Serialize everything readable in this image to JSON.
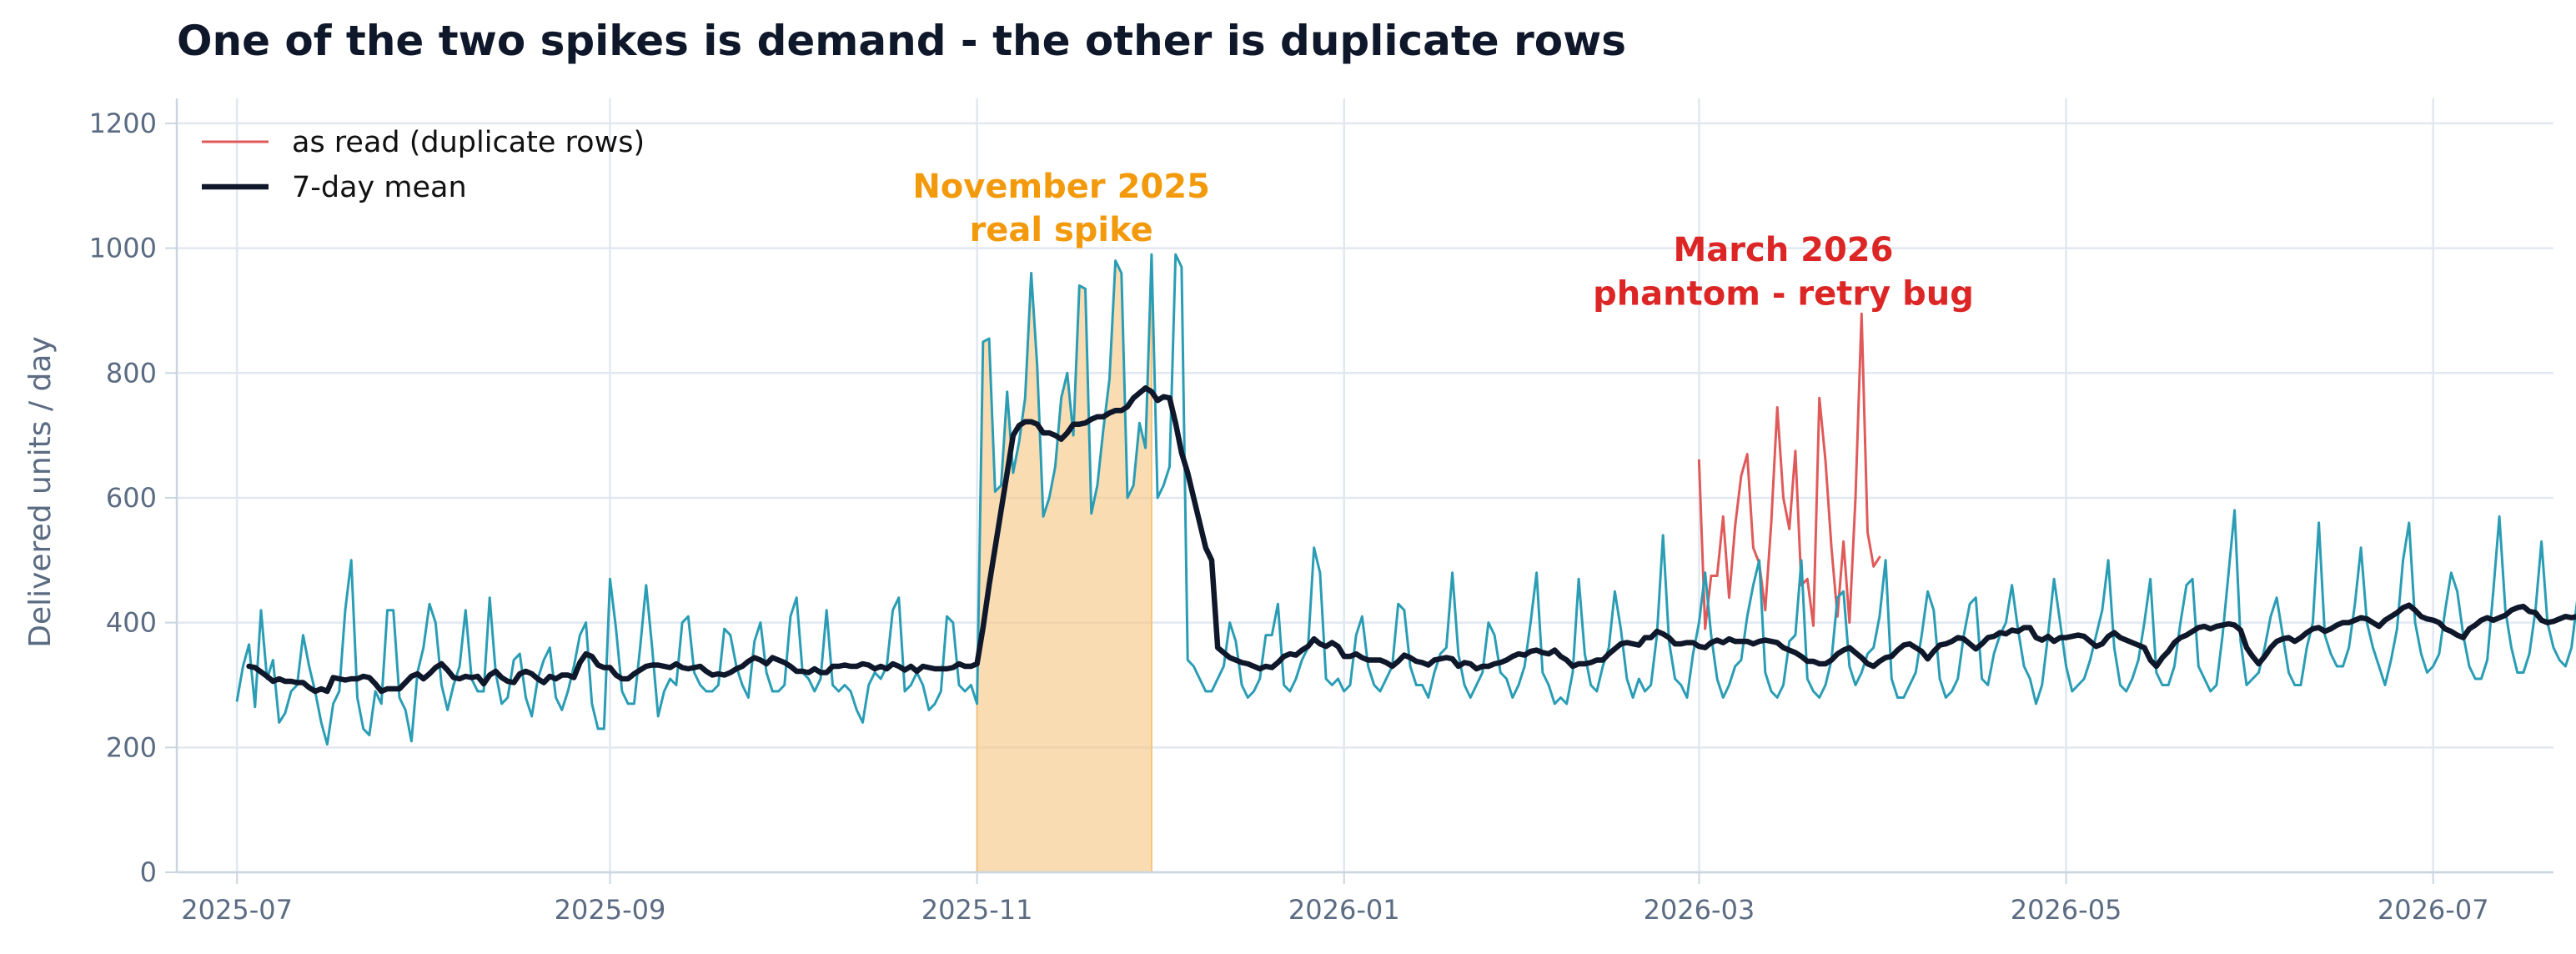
{
  "chart_data": {
    "type": "line",
    "title": "One of the two spikes is demand - the other is duplicate rows",
    "xlabel": "",
    "ylabel": "Delivered units / day",
    "xlim": [
      "2025-06-21",
      "2026-07-21"
    ],
    "ylim": [
      0,
      1240
    ],
    "grid": true,
    "legend_position": "top-left",
    "x_ticks": [
      "2025-07",
      "2025-09",
      "2025-11",
      "2026-01",
      "2026-03",
      "2026-05",
      "2026-07"
    ],
    "y_ticks": [
      0,
      200,
      400,
      600,
      800,
      1000,
      1200
    ],
    "colors": {
      "daily": "#2a9db5",
      "duplicate": "#e05a5a",
      "mean": "#0f172a",
      "real_spike_fill": "#f6c47e",
      "real_spike_text": "#f29a0c",
      "phantom_text": "#dc2626",
      "grid": "#e2e8f0",
      "axis": "#cbd5e1"
    },
    "highlight_band": {
      "x": [
        "2025-11-01",
        "2025-11-30"
      ],
      "label": "real spike"
    },
    "annotations": [
      {
        "lines": [
          "November 2025",
          "real spike"
        ],
        "x": "2025-11-15",
        "y": [
          1100,
          1030
        ],
        "color": "#f29a0c"
      },
      {
        "lines": [
          "March 2026",
          "phantom - retry bug"
        ],
        "x": "2026-03-15",
        "y": [
          998,
          928
        ],
        "color": "#dc2626"
      }
    ],
    "series": [
      {
        "name": "as read (duplicate rows)",
        "color": "#e05a5a",
        "start": "2026-03-01",
        "values": [
          660,
          390,
          475,
          475,
          570,
          440,
          555,
          635,
          670,
          520,
          495,
          420,
          560,
          745,
          600,
          550,
          675,
          460,
          470,
          395,
          760,
          660,
          520,
          410,
          530,
          400,
          600,
          895,
          545,
          490,
          505
        ]
      },
      {
        "name": "7-day mean",
        "color": "#0f172a",
        "start": "2025-07-03",
        "values": [
          330,
          328,
          321,
          314,
          306,
          310,
          306,
          306,
          304,
          304,
          296,
          290,
          294,
          290,
          312,
          310,
          308,
          310,
          310,
          314,
          312,
          302,
          290,
          294,
          294,
          294,
          304,
          314,
          318,
          310,
          318,
          328,
          334,
          324,
          312,
          310,
          314,
          312,
          314,
          302,
          316,
          322,
          312,
          306,
          304,
          318,
          322,
          318,
          310,
          304,
          314,
          310,
          316,
          316,
          312,
          336,
          350,
          346,
          332,
          328,
          328,
          316,
          310,
          310,
          318,
          324,
          330,
          332,
          332,
          330,
          328,
          334,
          328,
          326,
          328,
          330,
          322,
          316,
          318,
          316,
          320,
          326,
          330,
          338,
          344,
          340,
          334,
          344,
          340,
          336,
          330,
          322,
          322,
          320,
          326,
          320,
          320,
          330,
          330,
          332,
          330,
          330,
          334,
          332,
          326,
          330,
          326,
          334,
          330,
          324,
          330,
          322,
          330,
          328,
          326,
          326,
          326,
          328,
          334,
          330,
          330,
          334,
          392,
          460,
          520,
          580,
          640,
          700,
          716,
          722,
          722,
          718,
          704,
          704,
          700,
          694,
          704,
          718,
          718,
          720,
          726,
          730,
          730,
          736,
          740,
          740,
          746,
          760,
          768,
          776,
          770,
          756,
          762,
          760,
          720,
          672,
          640,
          600,
          560,
          520,
          500,
          360,
          352,
          344,
          340,
          336,
          334,
          330,
          326,
          330,
          328,
          336,
          346,
          350,
          348,
          356,
          362,
          374,
          366,
          362,
          368,
          362,
          346,
          346,
          350,
          344,
          340,
          340,
          340,
          336,
          330,
          338,
          348,
          344,
          338,
          336,
          332,
          340,
          342,
          344,
          342,
          330,
          336,
          334,
          326,
          330,
          330,
          334,
          336,
          340,
          346,
          350,
          348,
          354,
          356,
          352,
          350,
          356,
          346,
          340,
          330,
          334,
          334,
          336,
          340,
          340,
          350,
          358,
          366,
          368,
          366,
          364,
          376,
          376,
          386,
          382,
          376,
          366,
          366,
          368,
          368,
          362,
          360,
          368,
          372,
          368,
          374,
          370,
          370,
          370,
          366,
          370,
          372,
          370,
          368,
          360,
          356,
          352,
          346,
          338,
          338,
          334,
          334,
          340,
          350,
          356,
          360,
          352,
          344,
          334,
          330,
          338,
          344,
          346,
          356,
          364,
          366,
          360,
          354,
          342,
          354,
          364,
          366,
          370,
          376,
          374,
          366,
          358,
          366,
          376,
          378,
          384,
          382,
          388,
          386,
          392,
          392,
          376,
          372,
          378,
          370,
          376,
          376,
          378,
          380,
          378,
          370,
          362,
          366,
          378,
          384,
          376,
          372,
          368,
          364,
          360,
          340,
          330,
          344,
          354,
          368,
          376,
          380,
          386,
          392,
          394,
          390,
          394,
          396,
          398,
          396,
          388,
          360,
          346,
          334,
          346,
          360,
          370,
          374,
          376,
          370,
          376,
          384,
          390,
          392,
          386,
          390,
          396,
          400,
          400,
          404,
          408,
          406,
          400,
          394,
          404,
          410,
          416,
          424,
          428,
          420,
          410,
          406,
          404,
          400,
          390,
          386,
          380,
          376,
          390,
          396,
          404,
          408,
          404,
          408,
          412,
          420,
          424,
          426,
          418,
          416,
          404,
          400,
          402,
          406,
          410,
          408,
          410,
          412,
          414,
          416,
          416,
          412,
          410,
          410,
          414,
          412,
          408,
          402,
          396,
          396,
          392,
          388,
          378,
          376,
          376,
          384,
          392,
          402,
          404,
          408,
          410,
          414,
          410,
          412,
          420
        ]
      },
      {
        "name": "daily delivered",
        "color": "#2a9db5",
        "start": "2025-07-01",
        "values": [
          275,
          330,
          365,
          265,
          420,
          310,
          340,
          240,
          255,
          290,
          300,
          380,
          330,
          290,
          240,
          205,
          270,
          290,
          420,
          500,
          280,
          230,
          220,
          290,
          270,
          420,
          420,
          280,
          260,
          210,
          320,
          360,
          430,
          400,
          300,
          260,
          300,
          330,
          420,
          310,
          290,
          290,
          440,
          320,
          270,
          280,
          340,
          350,
          280,
          250,
          310,
          340,
          360,
          280,
          260,
          290,
          330,
          380,
          400,
          270,
          230,
          230,
          470,
          390,
          290,
          270,
          270,
          360,
          460,
          360,
          250,
          290,
          310,
          300,
          400,
          410,
          320,
          300,
          290,
          290,
          300,
          390,
          380,
          330,
          300,
          280,
          370,
          400,
          320,
          290,
          290,
          300,
          410,
          440,
          320,
          310,
          290,
          310,
          420,
          300,
          290,
          300,
          290,
          260,
          240,
          300,
          320,
          310,
          330,
          420,
          440,
          290,
          300,
          320,
          300,
          260,
          270,
          290,
          410,
          400,
          300,
          290,
          300,
          270,
          850,
          855,
          610,
          620,
          770,
          640,
          690,
          760,
          960,
          810,
          570,
          600,
          650,
          760,
          800,
          700,
          940,
          935,
          575,
          620,
          710,
          790,
          980,
          960,
          600,
          620,
          720,
          680,
          990,
          600,
          620,
          650,
          990,
          970,
          340,
          330,
          310,
          290,
          290,
          310,
          330,
          400,
          370,
          300,
          280,
          290,
          310,
          380,
          380,
          430,
          300,
          290,
          310,
          340,
          360,
          520,
          480,
          310,
          300,
          310,
          290,
          300,
          380,
          410,
          330,
          300,
          290,
          310,
          330,
          430,
          420,
          330,
          300,
          300,
          280,
          320,
          350,
          360,
          480,
          350,
          300,
          280,
          300,
          320,
          400,
          380,
          320,
          310,
          280,
          300,
          330,
          400,
          480,
          320,
          300,
          270,
          280,
          270,
          320,
          470,
          350,
          300,
          290,
          330,
          360,
          450,
          390,
          310,
          280,
          310,
          290,
          300,
          380,
          540,
          370,
          310,
          300,
          280,
          350,
          400,
          480,
          380,
          310,
          280,
          300,
          330,
          340,
          410,
          460,
          500,
          320,
          290,
          280,
          300,
          370,
          380,
          500,
          310,
          290,
          280,
          300,
          340,
          440,
          450,
          330,
          300,
          320,
          350,
          360,
          410,
          500,
          310,
          280,
          280,
          300,
          320,
          380,
          450,
          420,
          310,
          280,
          290,
          310,
          380,
          430,
          440,
          310,
          300,
          350,
          380,
          400,
          460,
          390,
          330,
          310,
          270,
          300,
          380,
          470,
          400,
          330,
          290,
          300,
          310,
          340,
          380,
          420,
          500,
          360,
          300,
          290,
          310,
          340,
          400,
          470,
          320,
          300,
          300,
          330,
          400,
          460,
          470,
          330,
          310,
          290,
          300,
          380,
          480,
          580,
          370,
          300,
          310,
          320,
          360,
          410,
          440,
          380,
          320,
          300,
          300,
          360,
          400,
          560,
          380,
          350,
          330,
          330,
          360,
          430,
          520,
          400,
          360,
          330,
          300,
          340,
          390,
          500,
          560,
          400,
          350,
          320,
          330,
          350,
          420,
          480,
          450,
          380,
          330,
          310,
          310,
          340,
          450,
          570,
          420,
          360,
          320,
          320,
          350,
          420,
          530,
          400,
          360,
          340,
          330,
          360,
          440,
          560,
          460,
          380,
          320,
          330,
          300,
          360,
          410,
          500,
          420,
          350,
          340,
          310,
          340,
          380,
          480,
          470,
          380,
          340,
          310,
          330,
          360,
          420,
          500,
          460,
          360,
          330,
          350,
          380,
          450,
          480,
          490,
          360,
          340,
          400
        ]
      }
    ]
  }
}
